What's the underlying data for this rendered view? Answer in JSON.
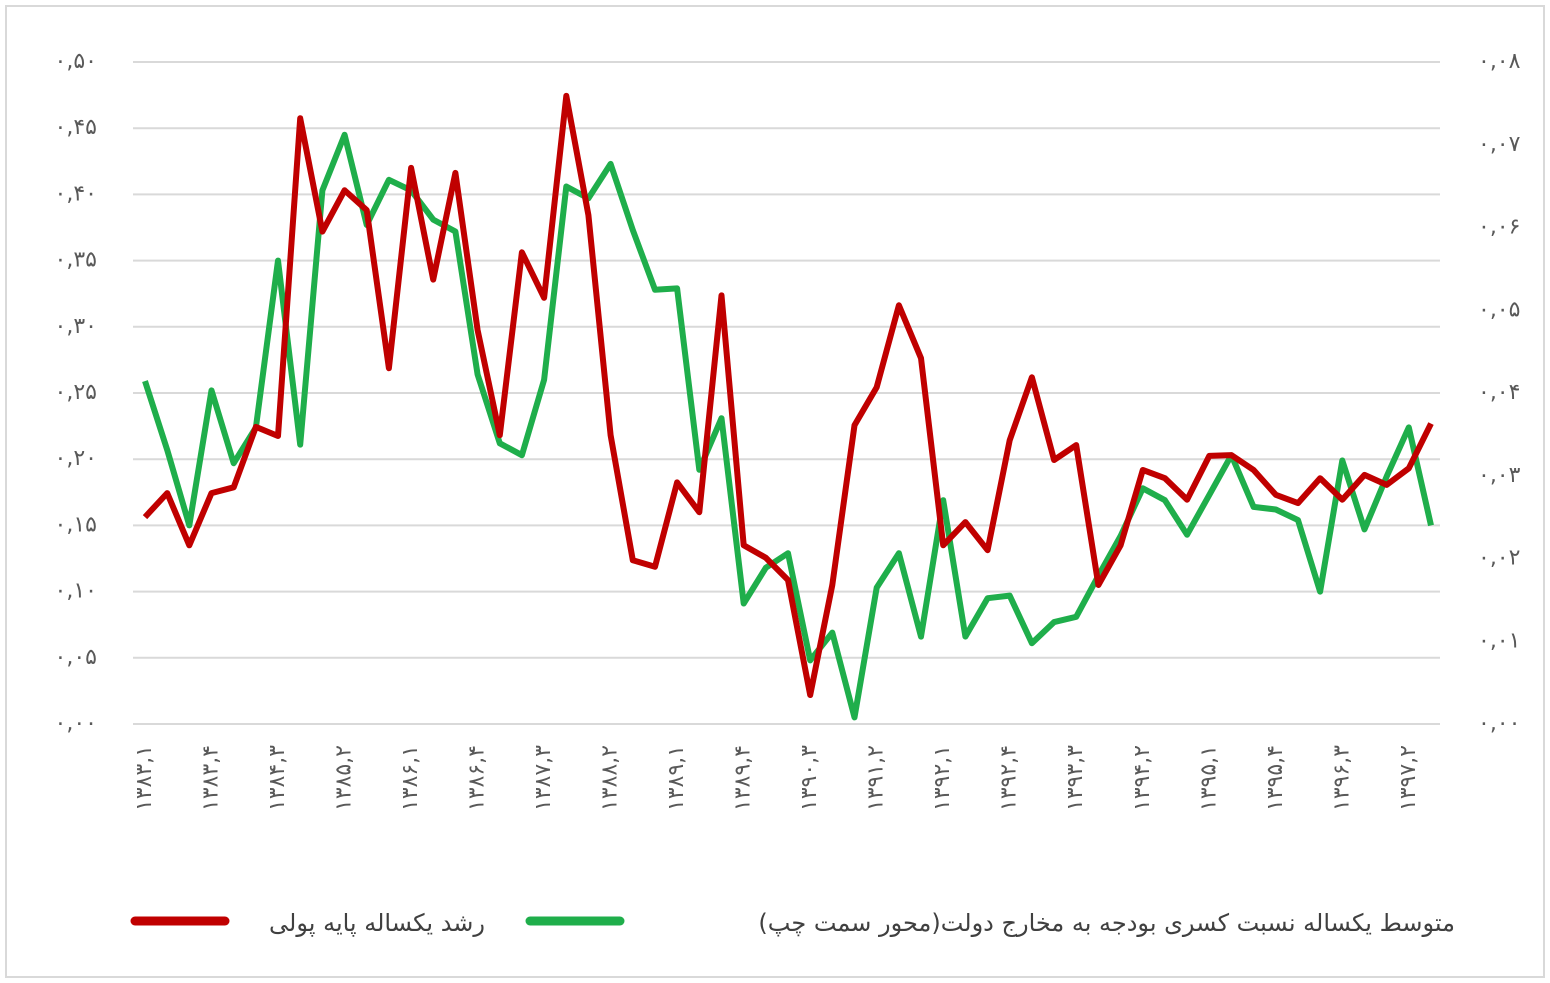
{
  "chart_data": {
    "type": "line",
    "categories": [
      "۱۳۸۳,۱",
      null,
      null,
      "۱۳۸۳,۴",
      null,
      null,
      "۱۳۸۴,۳",
      null,
      null,
      "۱۳۸۵,۲",
      null,
      null,
      "۱۳۸۶,۱",
      null,
      null,
      "۱۳۸۶,۴",
      null,
      null,
      "۱۳۸۷,۳",
      null,
      null,
      "۱۳۸۸,۲",
      null,
      null,
      "۱۳۸۹,۱",
      null,
      null,
      "۱۳۸۹,۴",
      null,
      null,
      "۱۳۹۰,۳",
      null,
      null,
      "۱۳۹۱,۲",
      null,
      null,
      "۱۳۹۲,۱",
      null,
      null,
      "۱۳۹۲,۴",
      null,
      null,
      "۱۳۹۳,۳",
      null,
      null,
      "۱۳۹۴,۲",
      null,
      null,
      "۱۳۹۵,۱",
      null,
      null,
      "۱۳۹۵,۴",
      null,
      null,
      "۱۳۹۶,۳",
      null,
      null,
      "۱۳۹۷,۲",
      null
    ],
    "series": [
      {
        "name": "رشد یکساله پایه پولی",
        "color": "#c00000",
        "axis": "y2",
        "values": [
          0.025,
          0.0279,
          0.0216,
          0.0279,
          0.0286,
          0.0359,
          0.0348,
          0.0732,
          0.0595,
          0.0645,
          0.0621,
          0.043,
          0.0672,
          0.0537,
          0.0666,
          0.0476,
          0.0349,
          0.057,
          0.0515,
          0.0759,
          0.0615,
          0.0349,
          0.0198,
          0.019,
          0.0292,
          0.0256,
          0.0518,
          0.0216,
          0.0201,
          0.0174,
          0.0035,
          0.0168,
          0.0361,
          0.0407,
          0.0506,
          0.0442,
          0.0216,
          0.0244,
          0.021,
          0.0343,
          0.0419,
          0.0319,
          0.0337,
          0.0168,
          0.0216,
          0.0307,
          0.0297,
          0.0271,
          0.0324,
          0.0325,
          0.0307,
          0.0277,
          0.0267,
          0.0297,
          0.0271,
          0.0301,
          0.0289,
          0.0309,
          0.0363
        ]
      },
      {
        "name": "متوسط یکساله نسبت کسری بودجه به مخارج دولت(محور سمت چپ)",
        "color": "#1fae4b",
        "values": [
          0.259,
          0.207,
          0.15,
          0.252,
          0.197,
          0.224,
          0.35,
          0.211,
          0.403,
          0.445,
          0.377,
          0.411,
          0.403,
          0.381,
          0.372,
          0.264,
          0.212,
          0.203,
          0.26,
          0.406,
          0.397,
          0.423,
          0.373,
          0.328,
          0.329,
          0.192,
          0.231,
          0.091,
          0.118,
          0.129,
          0.048,
          0.069,
          0.005,
          0.103,
          0.129,
          0.066,
          0.169,
          0.066,
          0.095,
          0.097,
          0.061,
          0.077,
          0.081,
          0.112,
          0.142,
          0.178,
          0.169,
          0.143,
          0.173,
          0.203,
          0.164,
          0.162,
          0.154,
          0.1,
          0.199,
          0.147,
          0.187,
          0.224,
          0.15
        ]
      }
    ],
    "ylim": [
      0,
      0.5
    ],
    "yticks": [
      {
        "value": 0,
        "label": "۰,۰۰"
      },
      {
        "value": 0.05,
        "label": "۰,۰۵"
      },
      {
        "value": 0.1,
        "label": "۰,۱۰"
      },
      {
        "value": 0.15,
        "label": "۰,۱۵"
      },
      {
        "value": 0.2,
        "label": "۰,۲۰"
      },
      {
        "value": 0.25,
        "label": "۰,۲۵"
      },
      {
        "value": 0.3,
        "label": "۰,۳۰"
      },
      {
        "value": 0.35,
        "label": "۰,۳۵"
      },
      {
        "value": 0.4,
        "label": "۰,۴۰"
      },
      {
        "value": 0.45,
        "label": "۰,۴۵"
      },
      {
        "value": 0.5,
        "label": "۰,۵۰"
      }
    ],
    "y2lim": [
      0,
      0.08
    ],
    "y2ticks": [
      {
        "value": 0,
        "label": "۰,۰۰"
      },
      {
        "value": 0.01,
        "label": "۰,۰۱"
      },
      {
        "value": 0.02,
        "label": "۰,۰۲"
      },
      {
        "value": 0.03,
        "label": "۰,۰۳"
      },
      {
        "value": 0.04,
        "label": "۰,۰۴"
      },
      {
        "value": 0.05,
        "label": "۰,۰۵"
      },
      {
        "value": 0.06,
        "label": "۰,۰۶"
      },
      {
        "value": 0.07,
        "label": "۰,۰۷"
      },
      {
        "value": 0.08,
        "label": "۰,۰۸"
      }
    ],
    "grid": true,
    "legend": "bottom"
  }
}
